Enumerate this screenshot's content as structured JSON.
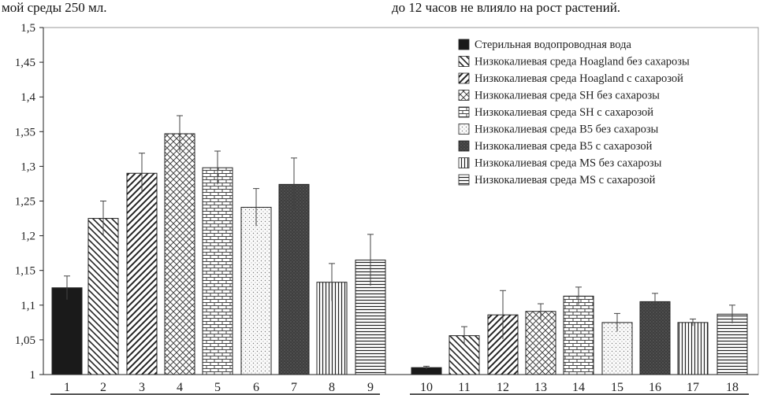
{
  "header": {
    "left_fragment": "мой среды 250 мл.",
    "right_fragment": "до 12 часов не влияло на рост растений."
  },
  "chart_data": {
    "type": "bar",
    "title": "",
    "xlabel": "",
    "ylabel": "",
    "ylim": [
      1,
      1.5
    ],
    "yticks": [
      "1",
      "1,05",
      "1,1",
      "1,15",
      "1,2",
      "1,25",
      "1,3",
      "1,35",
      "1,4",
      "1,45",
      "1,5"
    ],
    "grid": false,
    "legend_position": "top-right",
    "categories": [
      "1",
      "2",
      "3",
      "4",
      "5",
      "6",
      "7",
      "8",
      "9",
      "10",
      "11",
      "12",
      "13",
      "14",
      "15",
      "16",
      "17",
      "18"
    ],
    "values": [
      1.125,
      1.225,
      1.29,
      1.347,
      1.298,
      1.241,
      1.274,
      1.133,
      1.165,
      1.01,
      1.056,
      1.086,
      1.091,
      1.113,
      1.075,
      1.105,
      1.075,
      1.087
    ],
    "errors": [
      0.017,
      0.025,
      0.029,
      0.026,
      0.024,
      0.027,
      0.038,
      0.027,
      0.037,
      0.002,
      0.013,
      0.035,
      0.011,
      0.013,
      0.013,
      0.012,
      0.005,
      0.013
    ],
    "series_of_bar": [
      0,
      1,
      2,
      3,
      4,
      5,
      6,
      7,
      8,
      0,
      1,
      2,
      3,
      4,
      5,
      6,
      7,
      8
    ],
    "legend": [
      {
        "label": "Стерильная водопроводная вода",
        "pattern": "solid",
        "color": "#1a1a1a"
      },
      {
        "label": "Низкокалиевая среда Hoagland без сахарозы",
        "pattern": "diag-back",
        "color": "#333333"
      },
      {
        "label": "Низкокалиевая среда Hoagland с сахарозой",
        "pattern": "diag-fwd",
        "color": "#333333"
      },
      {
        "label": "Низкокалиевая среда SH без сахарозы",
        "pattern": "diamond",
        "color": "#555555"
      },
      {
        "label": "Низкокалиевая среда SH с сахарозой",
        "pattern": "brick",
        "color": "#555555"
      },
      {
        "label": "Низкокалиевая среда B5 без сахарозы",
        "pattern": "dots",
        "color": "#888888"
      },
      {
        "label": "Низкокалиевая среда B5 с сахарозой",
        "pattern": "dark",
        "color": "#4a4a4a"
      },
      {
        "label": "Низкокалиевая среда MS без сахарозы",
        "pattern": "vlines",
        "color": "#333333"
      },
      {
        "label": "Низкокалиевая среда MS с сахарозой",
        "pattern": "hlines",
        "color": "#333333"
      }
    ]
  }
}
